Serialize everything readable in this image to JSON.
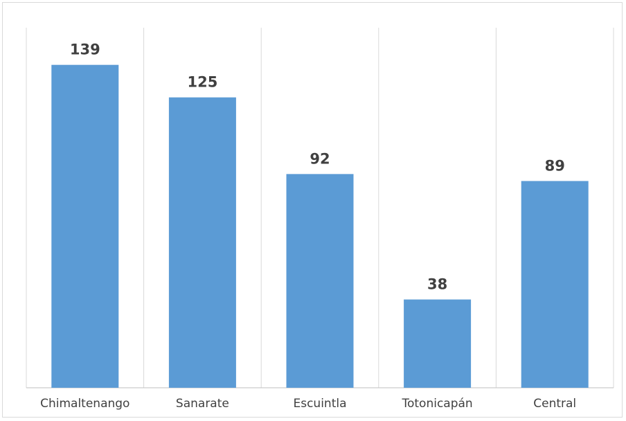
{
  "chart_data": {
    "type": "bar",
    "categories": [
      "Chimaltenango",
      "Sanarate",
      "Escuintla",
      "Totonicapán",
      "Central"
    ],
    "values": [
      139,
      125,
      92,
      38,
      89
    ],
    "ylim": [
      0,
      155
    ],
    "grid": "vertical category separators",
    "legend": "none",
    "data_labels": true,
    "colors": {
      "bar": "#5b9bd5",
      "grid": "#d9d9d9",
      "axis": "#bfbfbf",
      "text": "#404040"
    }
  }
}
